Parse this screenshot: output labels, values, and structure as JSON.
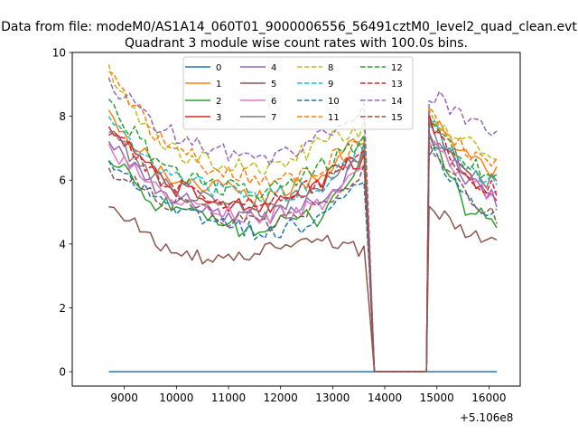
{
  "figure": {
    "suptitle": "Data from file: modeM0/AS1A14_060T01_9000006556_56491cztM0_level2_quad_clean.evt",
    "title": "Quadrant 3 module wise count rates with 100.0s bins."
  },
  "chart_data": {
    "type": "line",
    "xlim": [
      8000,
      16600
    ],
    "ylim": [
      -0.45,
      10
    ],
    "x_offset_label": "+5.106e8",
    "x_ticks": [
      9000,
      10000,
      11000,
      12000,
      13000,
      14000,
      15000,
      16000
    ],
    "x_tick_labels": [
      "9000",
      "10000",
      "11000",
      "12000",
      "13000",
      "14000",
      "15000",
      "16000"
    ],
    "y_ticks": [
      0,
      2,
      4,
      6,
      8,
      10
    ],
    "y_tick_labels": [
      "0",
      "2",
      "4",
      "6",
      "8",
      "10"
    ],
    "segments": [
      [
        8700,
        13800
      ],
      [
        14850,
        16200
      ]
    ],
    "bin": 100,
    "gap": [
      13800,
      14800
    ],
    "legend": {
      "placement": "upper-center",
      "ncol": 4
    },
    "series": [
      {
        "name": "0",
        "color": "#1f77b4",
        "style": "solid",
        "seg1": [
          0.0,
          0.0,
          0.0,
          0.0,
          0.0,
          0.0
        ],
        "seg2": [
          0.0,
          0.0,
          0.0
        ],
        "noise": 0.0
      },
      {
        "name": "1",
        "color": "#ff7f0e",
        "style": "solid",
        "seg1": [
          8.1,
          6.2,
          5.8,
          5.4,
          6.2,
          7.6
        ],
        "seg2": [
          8.1,
          6.8,
          6.2
        ],
        "noise": 0.28
      },
      {
        "name": "2",
        "color": "#2ca02c",
        "style": "solid",
        "seg1": [
          6.6,
          5.2,
          4.6,
          4.5,
          4.9,
          7.2
        ],
        "seg2": [
          7.5,
          5.2,
          4.7
        ],
        "noise": 0.32
      },
      {
        "name": "3",
        "color": "#d62728",
        "style": "solid",
        "seg1": [
          7.8,
          6.0,
          5.2,
          5.2,
          6.0,
          6.8
        ],
        "seg2": [
          7.8,
          6.3,
          5.4
        ],
        "noise": 0.3
      },
      {
        "name": "4",
        "color": "#9467bd",
        "style": "solid",
        "seg1": [
          7.3,
          5.6,
          5.0,
          4.8,
          5.5,
          7.0
        ],
        "seg2": [
          7.6,
          6.0,
          5.3
        ],
        "noise": 0.28
      },
      {
        "name": "5",
        "color": "#8c564b",
        "style": "solid",
        "seg1": [
          5.2,
          4.0,
          3.4,
          3.8,
          4.2,
          3.7
        ],
        "seg2": [
          5.2,
          4.4,
          4.0
        ],
        "noise": 0.25
      },
      {
        "name": "6",
        "color": "#e377c2",
        "style": "solid",
        "seg1": [
          7.0,
          5.5,
          5.0,
          4.9,
          5.2,
          6.6
        ],
        "seg2": [
          7.2,
          5.9,
          5.5
        ],
        "noise": 0.28
      },
      {
        "name": "7",
        "color": "#7f7f7f",
        "style": "solid",
        "seg1": [
          7.5,
          5.8,
          5.3,
          5.0,
          5.8,
          7.2
        ],
        "seg2": [
          7.6,
          6.4,
          5.8
        ],
        "noise": 0.28
      },
      {
        "name": "8",
        "color": "#bcbd22",
        "style": "dashed",
        "seg1": [
          9.5,
          7.0,
          6.5,
          6.4,
          7.1,
          7.8
        ],
        "seg2": [
          8.0,
          7.3,
          6.8
        ],
        "noise": 0.3
      },
      {
        "name": "9",
        "color": "#17becf",
        "style": "dashed",
        "seg1": [
          7.8,
          6.3,
          5.7,
          5.5,
          5.8,
          7.4
        ],
        "seg2": [
          7.8,
          6.5,
          5.8
        ],
        "noise": 0.28
      },
      {
        "name": "10",
        "color": "#1f77b4",
        "style": "dashed",
        "seg1": [
          6.5,
          5.2,
          4.7,
          4.3,
          4.8,
          6.2
        ],
        "seg2": [
          7.0,
          5.5,
          4.9
        ],
        "noise": 0.28
      },
      {
        "name": "11",
        "color": "#ff7f0e",
        "style": "dashed",
        "seg1": [
          9.3,
          7.2,
          6.3,
          6.0,
          6.4,
          7.5
        ],
        "seg2": [
          8.2,
          7.0,
          6.6
        ],
        "noise": 0.3
      },
      {
        "name": "12",
        "color": "#2ca02c",
        "style": "dashed",
        "seg1": [
          8.3,
          6.5,
          5.8,
          5.6,
          6.4,
          7.4
        ],
        "seg2": [
          8.0,
          6.6,
          6.1
        ],
        "noise": 0.28
      },
      {
        "name": "13",
        "color": "#d62728",
        "style": "dashed",
        "seg1": [
          7.6,
          6.0,
          5.4,
          5.3,
          5.9,
          7.3
        ],
        "seg2": [
          7.8,
          6.2,
          5.6
        ],
        "noise": 0.28
      },
      {
        "name": "14",
        "color": "#9467bd",
        "style": "dashed",
        "seg1": [
          9.0,
          7.6,
          7.0,
          6.6,
          7.4,
          8.3
        ],
        "seg2": [
          8.7,
          8.0,
          7.4
        ],
        "noise": 0.3
      },
      {
        "name": "15",
        "color": "#8c564b",
        "style": "dashed",
        "seg1": [
          6.4,
          5.4,
          4.9,
          4.5,
          5.1,
          6.6
        ],
        "seg2": [
          7.0,
          5.6,
          4.8
        ],
        "noise": 0.28
      }
    ]
  }
}
